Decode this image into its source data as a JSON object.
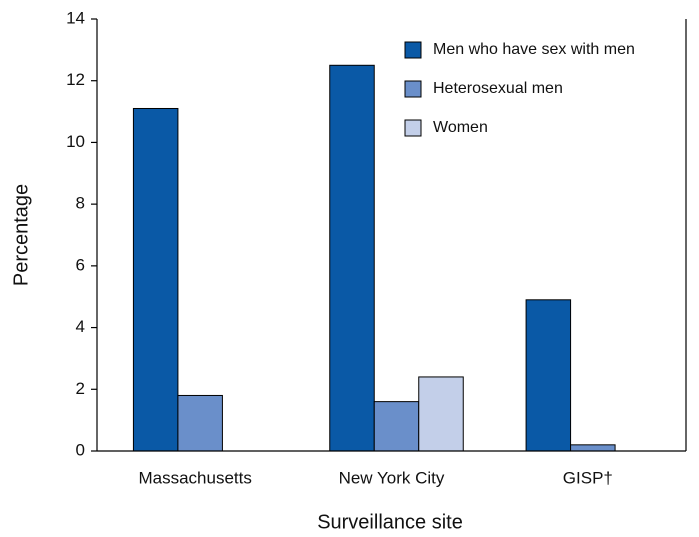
{
  "chart_data": {
    "type": "bar",
    "x_label": "Surveillance site",
    "y_label": "Percentage",
    "categories": [
      "Massachusetts",
      "New York City",
      "GISP†"
    ],
    "series": [
      {
        "name": "Men who have sex with men",
        "color": "#0a59a6",
        "values": [
          11.1,
          12.5,
          4.9
        ]
      },
      {
        "name": "Heterosexual men",
        "color": "#6a8fca",
        "values": [
          1.8,
          1.6,
          0.2
        ]
      },
      {
        "name": "Women",
        "color": "#c3cfe9",
        "values": [
          null,
          2.4,
          null
        ]
      }
    ],
    "ylim": [
      0,
      14
    ],
    "yticks": [
      0,
      2,
      4,
      6,
      8,
      10,
      12,
      14
    ],
    "grid": false,
    "legend": "upper right"
  }
}
